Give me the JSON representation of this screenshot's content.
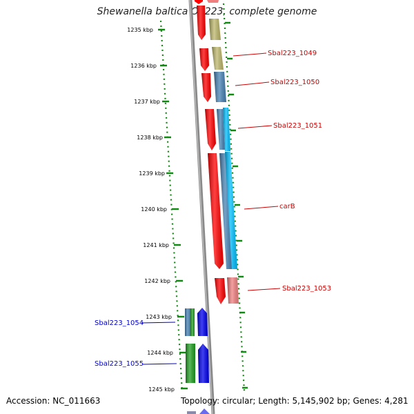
{
  "title": "Shewanella baltica OS223, complete genome",
  "accession": "Accession: NC_011663",
  "topology": "Topology: circular; Length: 5,145,902 bp; Genes: 4,281",
  "ticks": [
    "1235 kbp",
    "1236 kbp",
    "1237 kbp",
    "1238 kbp",
    "1239 kbp",
    "1240 kbp",
    "1241 kbp",
    "1242 kbp",
    "1243 kbp",
    "1244 kbp",
    "1245 kbp"
  ],
  "colors": {
    "red": "#ff0000",
    "khaki": "#bdb76b",
    "steel_blue": "#4682b4",
    "deep_sky_blue": "#00bfff",
    "light_coral": "#f08080",
    "green": "#22a022",
    "blue": "#0000ee",
    "label_red": "#cc0000",
    "label_blue": "#0000cc",
    "tick_green": "#118811",
    "backbone": "#8a8a8a"
  },
  "gene_labels": {
    "l1049": "Sbal223_1049",
    "l1050": "Sbal223_1050",
    "l1051": "Sbal223_1051",
    "carB": "carB",
    "l1053": "Sbal223_1053",
    "l1054": "Sbal223_1054",
    "l1055": "Sbal223_1055"
  }
}
